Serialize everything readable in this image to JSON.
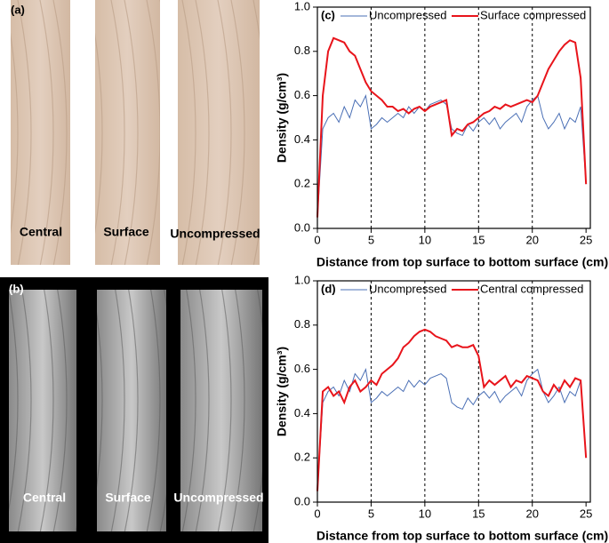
{
  "photos": [
    {
      "label": "(a)",
      "captions": [
        "Central",
        "Surface",
        "Uncompressed"
      ]
    },
    {
      "label": "(b)",
      "captions": [
        "Central",
        "Surface",
        "Uncompressed"
      ]
    }
  ],
  "chart_data": [
    {
      "type": "line",
      "title": "(c)",
      "xlabel": "Distance from top surface to bottom surface (cm)",
      "ylabel": "Density (g/cm³)",
      "x": [
        0,
        0.5,
        1,
        1.5,
        2,
        2.5,
        3,
        3.5,
        4,
        4.5,
        5,
        5.5,
        6,
        6.5,
        7,
        7.5,
        8,
        8.5,
        9,
        9.5,
        10,
        10.5,
        11,
        11.5,
        12,
        12.5,
        13,
        13.5,
        14,
        14.5,
        15,
        15.5,
        16,
        16.5,
        17,
        17.5,
        18,
        18.5,
        19,
        19.5,
        20,
        20.5,
        21,
        21.5,
        22,
        22.5,
        23,
        23.5,
        24,
        24.5,
        25
      ],
      "series": [
        {
          "name": "Uncompressed",
          "color": "#4a6fb5",
          "values": [
            0.05,
            0.45,
            0.5,
            0.52,
            0.48,
            0.55,
            0.5,
            0.58,
            0.55,
            0.6,
            0.45,
            0.47,
            0.5,
            0.48,
            0.5,
            0.52,
            0.5,
            0.55,
            0.52,
            0.55,
            0.53,
            0.56,
            0.57,
            0.58,
            0.56,
            0.45,
            0.43,
            0.42,
            0.47,
            0.44,
            0.48,
            0.5,
            0.47,
            0.5,
            0.45,
            0.48,
            0.5,
            0.52,
            0.48,
            0.55,
            0.58,
            0.6,
            0.5,
            0.45,
            0.48,
            0.52,
            0.45,
            0.5,
            0.48,
            0.55,
            0.2
          ]
        },
        {
          "name": "Surface compressed",
          "color": "#e8141b",
          "values": [
            0.05,
            0.6,
            0.8,
            0.86,
            0.85,
            0.84,
            0.8,
            0.78,
            0.72,
            0.66,
            0.62,
            0.6,
            0.58,
            0.55,
            0.55,
            0.53,
            0.54,
            0.52,
            0.54,
            0.55,
            0.53,
            0.55,
            0.56,
            0.57,
            0.58,
            0.42,
            0.45,
            0.44,
            0.47,
            0.48,
            0.5,
            0.52,
            0.53,
            0.55,
            0.54,
            0.56,
            0.55,
            0.56,
            0.57,
            0.58,
            0.57,
            0.6,
            0.66,
            0.72,
            0.76,
            0.8,
            0.83,
            0.85,
            0.84,
            0.68,
            0.2
          ]
        }
      ],
      "xlim": [
        0,
        25.4
      ],
      "xticks": [
        0,
        5,
        10,
        15,
        20,
        25
      ],
      "ylim": [
        0,
        1
      ],
      "yticks": [
        {
          "value": 0,
          "label": "0.0"
        },
        0.2,
        0.4,
        0.6,
        0.8,
        {
          "value": 1,
          "label": "1.0"
        }
      ],
      "vgrid": [
        5,
        10,
        15,
        20
      ],
      "legend": "top"
    },
    {
      "type": "line",
      "title": "(d)",
      "xlabel": "Distance from top surface to bottom surface (cm)",
      "ylabel": "Density (g/cm³)",
      "x": [
        0,
        0.5,
        1,
        1.5,
        2,
        2.5,
        3,
        3.5,
        4,
        4.5,
        5,
        5.5,
        6,
        6.5,
        7,
        7.5,
        8,
        8.5,
        9,
        9.5,
        10,
        10.5,
        11,
        11.5,
        12,
        12.5,
        13,
        13.5,
        14,
        14.5,
        15,
        15.5,
        16,
        16.5,
        17,
        17.5,
        18,
        18.5,
        19,
        19.5,
        20,
        20.5,
        21,
        21.5,
        22,
        22.5,
        23,
        23.5,
        24,
        24.5,
        25
      ],
      "series": [
        {
          "name": "Uncompressed",
          "color": "#4a6fb5",
          "values": [
            0.05,
            0.45,
            0.5,
            0.52,
            0.48,
            0.55,
            0.5,
            0.58,
            0.55,
            0.6,
            0.45,
            0.47,
            0.5,
            0.48,
            0.5,
            0.52,
            0.5,
            0.55,
            0.52,
            0.55,
            0.53,
            0.56,
            0.57,
            0.58,
            0.56,
            0.45,
            0.43,
            0.42,
            0.47,
            0.44,
            0.48,
            0.5,
            0.47,
            0.5,
            0.45,
            0.48,
            0.5,
            0.52,
            0.48,
            0.55,
            0.58,
            0.6,
            0.5,
            0.45,
            0.48,
            0.52,
            0.45,
            0.5,
            0.48,
            0.55,
            0.2
          ]
        },
        {
          "name": "Central compressed",
          "color": "#e8141b",
          "values": [
            0.05,
            0.5,
            0.52,
            0.48,
            0.5,
            0.45,
            0.52,
            0.55,
            0.5,
            0.52,
            0.55,
            0.53,
            0.58,
            0.6,
            0.62,
            0.65,
            0.7,
            0.72,
            0.75,
            0.77,
            0.78,
            0.77,
            0.75,
            0.74,
            0.73,
            0.7,
            0.71,
            0.7,
            0.7,
            0.71,
            0.66,
            0.52,
            0.55,
            0.53,
            0.55,
            0.57,
            0.52,
            0.55,
            0.54,
            0.57,
            0.56,
            0.55,
            0.5,
            0.48,
            0.53,
            0.5,
            0.55,
            0.52,
            0.56,
            0.55,
            0.2
          ]
        }
      ],
      "xlim": [
        0,
        25.4
      ],
      "xticks": [
        0,
        5,
        10,
        15,
        20,
        25
      ],
      "ylim": [
        0,
        1
      ],
      "yticks": [
        {
          "value": 0,
          "label": "0.0"
        },
        0.2,
        0.4,
        0.6,
        0.8,
        {
          "value": 1,
          "label": "1.0"
        }
      ],
      "vgrid": [
        5,
        10,
        15,
        20
      ],
      "legend": "top"
    }
  ]
}
